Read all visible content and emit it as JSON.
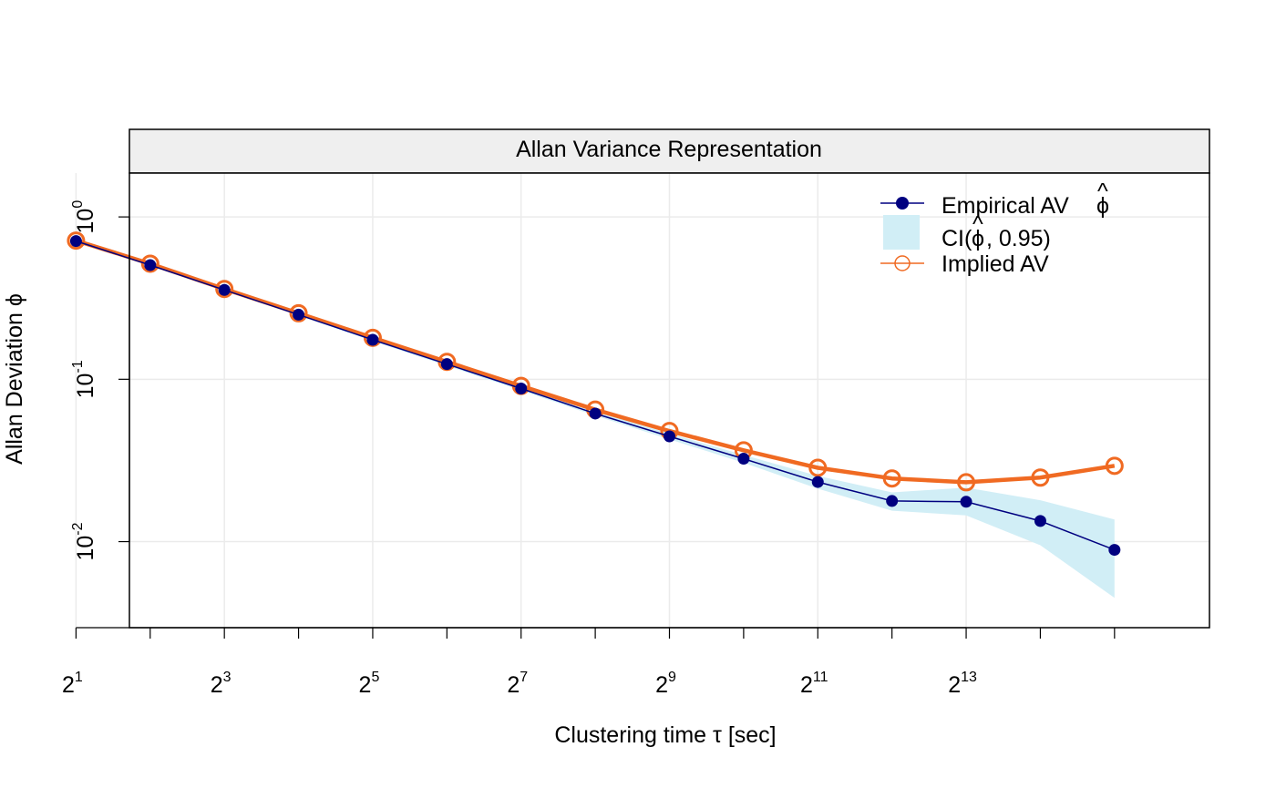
{
  "chart_data": {
    "type": "line",
    "title": "Allan Variance Representation",
    "xlabel": "Clustering time τ [sec]",
    "ylabel": "Allan Deviation ϕ",
    "x_scale": "log2",
    "y_scale": "log10",
    "xlim": [
      1.72,
      16.28
    ],
    "ylim": [
      -2.53,
      0.27
    ],
    "x_ticks": [
      {
        "base": "2",
        "exp": "1",
        "value": 1
      },
      {
        "base": "2",
        "exp": "3",
        "value": 3
      },
      {
        "base": "2",
        "exp": "5",
        "value": 5
      },
      {
        "base": "2",
        "exp": "7",
        "value": 7
      },
      {
        "base": "2",
        "exp": "9",
        "value": 9
      },
      {
        "base": "2",
        "exp": "11",
        "value": 11
      },
      {
        "base": "2",
        "exp": "13",
        "value": 13
      }
    ],
    "y_ticks": [
      {
        "base": "10",
        "exp": "0",
        "value": 0
      },
      {
        "base": "10",
        "exp": "-1",
        "value": -1
      },
      {
        "base": "10",
        "exp": "-2",
        "value": -2
      }
    ],
    "grid": true,
    "legend_position": "top-right",
    "tau_exponents": [
      1,
      2,
      3,
      4,
      5,
      6,
      7,
      8,
      9,
      10,
      11,
      12,
      13,
      14,
      15
    ],
    "series": [
      {
        "name": "Empirical AV",
        "legend_symbol": "ϕ",
        "color": "#000080",
        "values": [
          0.71,
          0.505,
          0.355,
          0.25,
          0.175,
          0.124,
          0.0877,
          0.0615,
          0.0445,
          0.0324,
          0.0233,
          0.0178,
          0.0176,
          0.0134,
          0.0089
        ]
      },
      {
        "name": "CI(",
        "legend_symbol": "ϕ",
        "legend_suffix": ", 0.95)",
        "color": "#d1eef6",
        "lower": [
          0.705,
          0.5,
          0.351,
          0.247,
          0.172,
          0.121,
          0.0855,
          0.0597,
          0.0427,
          0.0306,
          0.0212,
          0.0155,
          0.0145,
          0.0095,
          0.0045
        ],
        "upper": [
          0.715,
          0.51,
          0.359,
          0.253,
          0.178,
          0.127,
          0.0899,
          0.0633,
          0.0463,
          0.0342,
          0.0254,
          0.0201,
          0.0215,
          0.018,
          0.0137
        ]
      },
      {
        "name": "Implied AV",
        "color": "#f06a22",
        "values": [
          0.715,
          0.515,
          0.36,
          0.255,
          0.18,
          0.128,
          0.091,
          0.065,
          0.048,
          0.0365,
          0.0285,
          0.0245,
          0.0232,
          0.0248,
          0.0293
        ]
      }
    ]
  }
}
